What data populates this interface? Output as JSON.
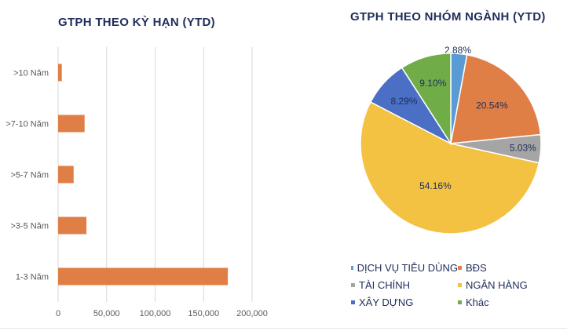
{
  "chart_data": [
    {
      "type": "bar",
      "orientation": "horizontal",
      "title": "GTPH THEO KỲ HẠN (YTD)",
      "categories": [
        ">10 Năm",
        ">7-10 Năm",
        ">5-7 Năm",
        ">3-5 Năm",
        "1-3 Năm"
      ],
      "values": [
        3800,
        27300,
        16000,
        29200,
        175000
      ],
      "xlim": [
        0,
        200000
      ],
      "xticks": [
        "0",
        "50,000",
        "100,000",
        "150,000",
        "200,000"
      ],
      "xtick_values": [
        0,
        50000,
        100000,
        150000,
        200000
      ],
      "grid": true,
      "color": "#e07f45"
    },
    {
      "type": "pie",
      "title": "GTPH THEO NHÓM NGÀNH (YTD)",
      "labels": [
        "DỊCH VỤ TIÊU DÙNG",
        "BĐS",
        "TÀI CHÍNH",
        "NGÂN HÀNG",
        "XÂY DỰNG",
        "Khác"
      ],
      "values": [
        2.88,
        20.54,
        5.03,
        54.16,
        8.29,
        9.1
      ],
      "data_labels": [
        "2.88%",
        "20.54%",
        "5.03%",
        "54.16%",
        "8.29%",
        "9.10%"
      ],
      "colors": [
        "#5b9bd5",
        "#e07f45",
        "#a5a5a5",
        "#f4c243",
        "#4a6fc4",
        "#70ad47"
      ],
      "legend_position": "bottom"
    }
  ]
}
